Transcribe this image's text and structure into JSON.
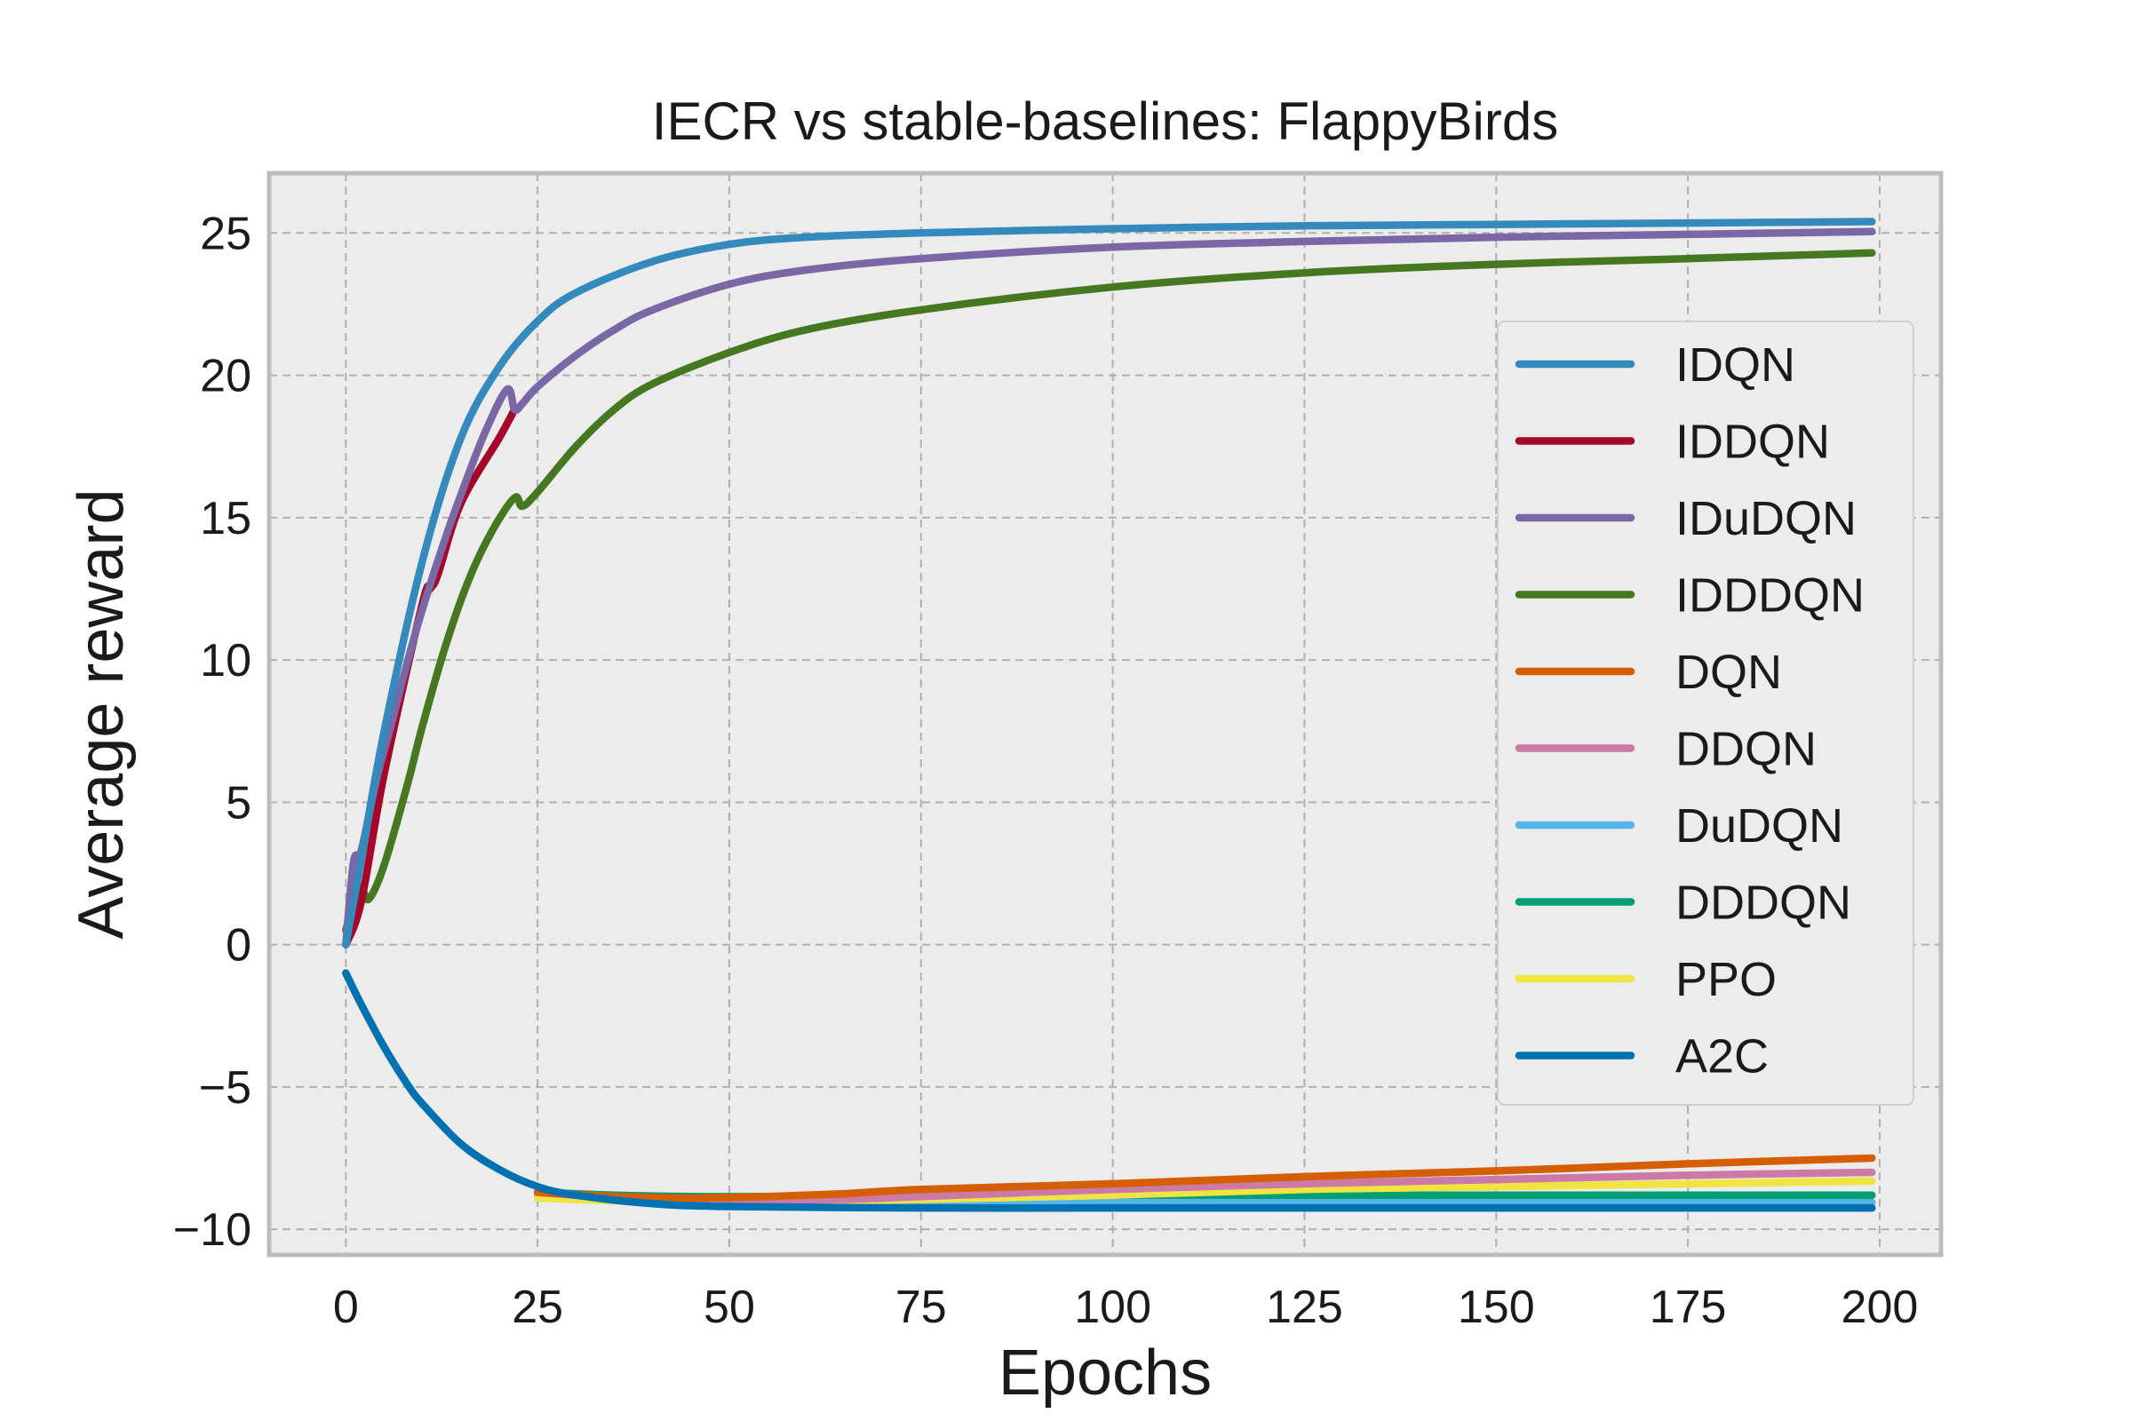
{
  "chart_data": {
    "type": "line",
    "title": "IECR vs stable-baselines: FlappyBirds",
    "xlabel": "Epochs",
    "ylabel": "Average reward",
    "xlim": [
      -10,
      208
    ],
    "ylim": [
      -10.9,
      27.1
    ],
    "xticks": [
      0,
      25,
      50,
      75,
      100,
      125,
      150,
      175,
      200
    ],
    "yticks": [
      25,
      20,
      15,
      10,
      5,
      0,
      -5,
      -10
    ],
    "ytick_labels": [
      "25",
      "20",
      "15",
      "10",
      "5",
      "0",
      "−5",
      "−10"
    ],
    "grid": true,
    "legend_position": "right",
    "series": [
      {
        "name": "IDQN",
        "color": "#348ABD",
        "x": [
          0,
          2,
          5,
          10,
          15,
          20,
          25,
          30,
          40,
          50,
          60,
          75,
          100,
          125,
          150,
          175,
          199
        ],
        "y": [
          0,
          3,
          7.5,
          13.5,
          17.8,
          20.3,
          21.9,
          22.9,
          24.0,
          24.6,
          24.85,
          25.0,
          25.15,
          25.25,
          25.3,
          25.35,
          25.4
        ]
      },
      {
        "name": "IDDQN",
        "color": "#A60628",
        "x": [
          0,
          2,
          5,
          10,
          11,
          12,
          15,
          20,
          22
        ],
        "y": [
          0,
          1.5,
          6.0,
          12.0,
          12.5,
          13.0,
          15.5,
          17.8,
          18.8
        ]
      },
      {
        "name": "IDuDQN",
        "color": "#7A68A6",
        "x": [
          0,
          1,
          2,
          4,
          6,
          8,
          10,
          13,
          15,
          18,
          21,
          22,
          23,
          25,
          30,
          35,
          40,
          50,
          60,
          75,
          100,
          125,
          150,
          175,
          199
        ],
        "y": [
          0,
          2.9,
          3.3,
          5.8,
          7.8,
          9.9,
          11.8,
          14.3,
          15.8,
          17.9,
          19.5,
          18.8,
          19.0,
          19.6,
          20.7,
          21.6,
          22.3,
          23.2,
          23.7,
          24.1,
          24.5,
          24.7,
          24.85,
          24.95,
          25.05
        ]
      },
      {
        "name": "IDDDQN",
        "color": "#467821",
        "x": [
          0,
          1,
          2,
          3,
          5,
          8,
          10,
          13,
          16,
          19,
          22,
          23,
          25,
          30,
          35,
          40,
          50,
          60,
          75,
          100,
          125,
          150,
          175,
          199
        ],
        "y": [
          0.5,
          1.5,
          2.0,
          1.6,
          2.8,
          5.6,
          7.7,
          10.5,
          12.8,
          14.5,
          15.7,
          15.4,
          15.9,
          17.5,
          18.8,
          19.7,
          20.8,
          21.6,
          22.3,
          23.1,
          23.6,
          23.9,
          24.1,
          24.3
        ]
      },
      {
        "name": "DQN",
        "color": "#D55E00",
        "x": [
          25,
          35,
          45,
          55,
          65,
          75,
          100,
          125,
          150,
          175,
          199
        ],
        "y": [
          -8.7,
          -8.85,
          -8.9,
          -8.85,
          -8.75,
          -8.6,
          -8.4,
          -8.15,
          -7.95,
          -7.7,
          -7.5
        ]
      },
      {
        "name": "DDQN",
        "color": "#CC79A7",
        "x": [
          25,
          35,
          45,
          55,
          65,
          75,
          100,
          125,
          150,
          175,
          199
        ],
        "y": [
          -8.7,
          -8.9,
          -9.0,
          -9.0,
          -8.95,
          -8.85,
          -8.6,
          -8.4,
          -8.25,
          -8.1,
          -8.0
        ]
      },
      {
        "name": "DuDQN",
        "color": "#56B4E9",
        "x": [
          25,
          50,
          75,
          100,
          125,
          150,
          175,
          199
        ],
        "y": [
          -8.8,
          -9.0,
          -9.05,
          -9.05,
          -9.05,
          -9.05,
          -9.05,
          -9.05
        ]
      },
      {
        "name": "DDDQN",
        "color": "#009E73",
        "x": [
          25,
          35,
          45,
          55,
          65,
          75,
          100,
          125,
          150,
          175,
          199
        ],
        "y": [
          -8.7,
          -8.8,
          -8.85,
          -8.85,
          -8.85,
          -8.85,
          -8.8,
          -8.8,
          -8.8,
          -8.8,
          -8.8
        ]
      },
      {
        "name": "PPO",
        "color": "#F0E442",
        "x": [
          25,
          35,
          45,
          55,
          65,
          75,
          100,
          125,
          150,
          175,
          199
        ],
        "y": [
          -8.9,
          -9.0,
          -9.05,
          -9.05,
          -9.0,
          -8.95,
          -8.8,
          -8.6,
          -8.5,
          -8.4,
          -8.3
        ]
      },
      {
        "name": "A2C",
        "color": "#0072B2",
        "x": [
          0,
          2,
          5,
          8,
          10,
          15,
          20,
          25,
          30,
          40,
          50,
          75,
          100,
          125,
          150,
          175,
          199
        ],
        "y": [
          -1.0,
          -2.1,
          -3.6,
          -4.9,
          -5.6,
          -7.0,
          -7.9,
          -8.5,
          -8.8,
          -9.1,
          -9.2,
          -9.25,
          -9.25,
          -9.25,
          -9.25,
          -9.25,
          -9.25
        ]
      }
    ]
  }
}
